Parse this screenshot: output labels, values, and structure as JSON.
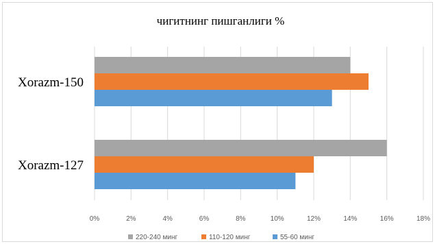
{
  "chart_data": {
    "type": "bar",
    "orientation": "horizontal",
    "title": "чигитнинг пишганлиги %",
    "xlabel": "",
    "ylabel": "",
    "categories": [
      "Xorazm-150",
      "Xorazm-127"
    ],
    "series": [
      {
        "name": "220-240 минг",
        "color": "#a5a5a5",
        "values": [
          14,
          16
        ]
      },
      {
        "name": "110-120 минг",
        "color": "#ed7d31",
        "values": [
          15,
          12
        ]
      },
      {
        "name": "55-60 минг",
        "color": "#5b9bd5",
        "values": [
          13,
          11
        ]
      }
    ],
    "xlim": [
      0,
      18
    ],
    "x_ticks": [
      "0%",
      "2%",
      "4%",
      "6%",
      "8%",
      "10%",
      "12%",
      "14%",
      "16%",
      "18%"
    ],
    "grid": true,
    "legend_position": "bottom"
  }
}
